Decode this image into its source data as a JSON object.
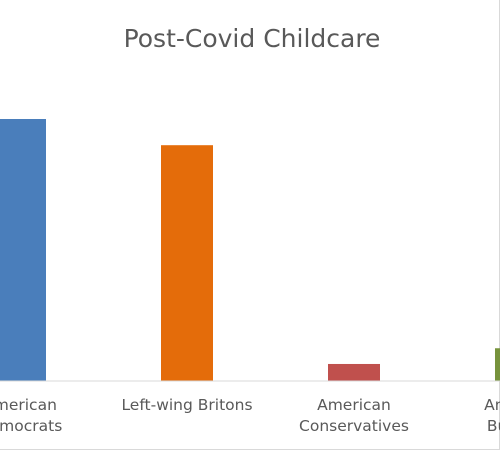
{
  "chart_data": {
    "type": "bar",
    "title": "Post-Covid Childcare",
    "categories": [
      [
        "American",
        "Democrats"
      ],
      [
        "Left-wing Britons"
      ],
      [
        "American",
        "Conservatives"
      ],
      [
        "American",
        "Business"
      ]
    ],
    "values": [
      100,
      90,
      6.5,
      12.5
    ],
    "ylim": [
      0,
      100
    ],
    "colors": [
      "#4a7ebb",
      "#e46c0a",
      "#c0504d",
      "#77933c"
    ],
    "grid": false,
    "legend": "none"
  }
}
